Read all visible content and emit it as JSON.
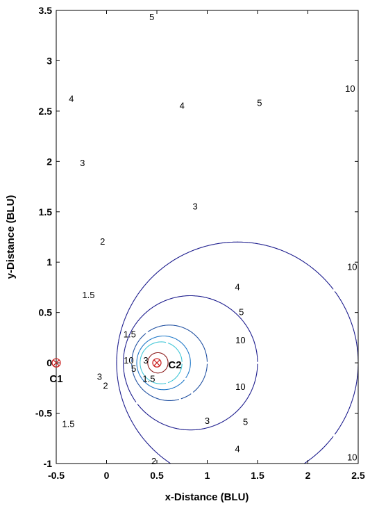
{
  "chart_data": {
    "type": "contour",
    "xlabel": "x-Distance (BLU)",
    "ylabel": "y-Distance (BLU)",
    "xlim": [
      -0.5,
      2.5
    ],
    "ylim": [
      -1,
      3.5
    ],
    "xticks": [
      "-0.5",
      "0",
      "0.5",
      "1",
      "1.5",
      "2",
      "2.5"
    ],
    "yticks": [
      "-1",
      "-0.5",
      "0",
      "0.5",
      "1",
      "1.5",
      "2",
      "2.5",
      "3",
      "3.5"
    ],
    "grid": false,
    "electrodes": [
      {
        "name": "C1",
        "x": -0.5,
        "y": 0
      },
      {
        "name": "C2",
        "x": 0.5,
        "y": 0
      }
    ],
    "levels": [
      {
        "value": 1.5,
        "color": "#1a1a8c"
      },
      {
        "value": 2,
        "color": "#1a1a8c"
      },
      {
        "value": 3,
        "color": "#1f4fa0"
      },
      {
        "value": 4,
        "color": "#1f78c8"
      },
      {
        "value": 5,
        "color": "#3fc6d6"
      },
      {
        "value": 10,
        "color": "#8b1a1a"
      }
    ],
    "level_labels": [
      {
        "text": "5",
        "x": 0.45,
        "y": 3.43
      },
      {
        "text": "4",
        "x": -0.35,
        "y": 2.62
      },
      {
        "text": "4",
        "x": 0.75,
        "y": 2.55
      },
      {
        "text": "5",
        "x": 1.52,
        "y": 2.58
      },
      {
        "text": "10",
        "x": 2.42,
        "y": 2.72
      },
      {
        "text": "3",
        "x": -0.24,
        "y": 1.98
      },
      {
        "text": "3",
        "x": 0.88,
        "y": 1.55
      },
      {
        "text": "2",
        "x": -0.04,
        "y": 1.2
      },
      {
        "text": "1.5",
        "x": -0.18,
        "y": 0.67
      },
      {
        "text": "1.5",
        "x": 0.23,
        "y": 0.28
      },
      {
        "text": "4",
        "x": 1.3,
        "y": 0.75
      },
      {
        "text": "5",
        "x": 1.34,
        "y": 0.5
      },
      {
        "text": "10",
        "x": 2.44,
        "y": 0.95
      },
      {
        "text": "10",
        "x": 1.33,
        "y": 0.22
      },
      {
        "text": "10",
        "x": 0.22,
        "y": 0.02
      },
      {
        "text": "3",
        "x": 0.39,
        "y": 0.02
      },
      {
        "text": "5",
        "x": 0.27,
        "y": -0.06
      },
      {
        "text": "3",
        "x": -0.07,
        "y": -0.14
      },
      {
        "text": "2",
        "x": -0.01,
        "y": -0.23
      },
      {
        "text": "1.5",
        "x": 0.42,
        "y": -0.16
      },
      {
        "text": "10",
        "x": 1.33,
        "y": -0.24
      },
      {
        "text": "1.5",
        "x": -0.38,
        "y": -0.61
      },
      {
        "text": "3",
        "x": 1.0,
        "y": -0.58
      },
      {
        "text": "5",
        "x": 1.38,
        "y": -0.59
      },
      {
        "text": "4",
        "x": 1.3,
        "y": -0.86
      },
      {
        "text": "10",
        "x": 2.44,
        "y": -0.94
      },
      {
        "text": "2",
        "x": 0.47,
        "y": -0.98
      }
    ]
  }
}
